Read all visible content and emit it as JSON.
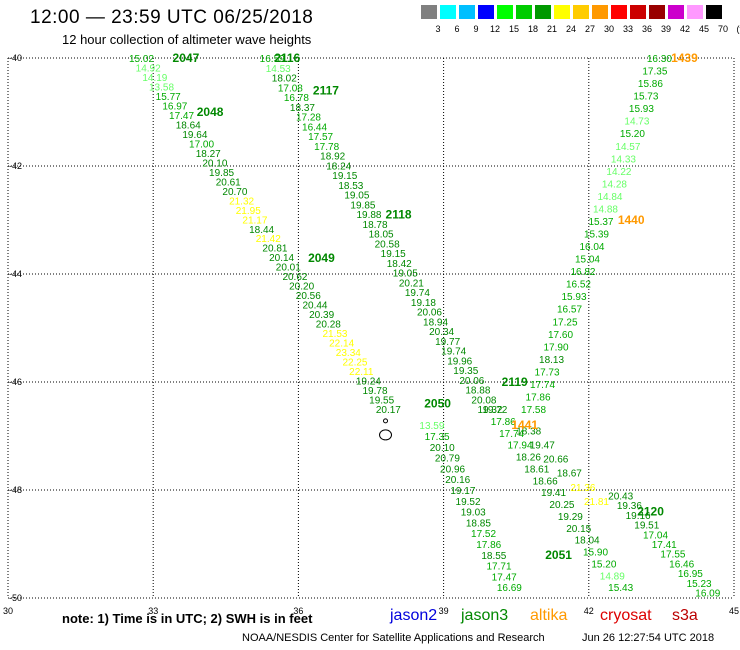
{
  "header": {
    "title": "12:00 — 23:59 UTC 06/25/2018",
    "subtitle": "12 hour collection of altimeter wave heights"
  },
  "color_scale": {
    "labels": [
      "3",
      "6",
      "9",
      "12",
      "15",
      "18",
      "21",
      "24",
      "27",
      "30",
      "33",
      "36",
      "39",
      "42",
      "45",
      "70",
      "(ft)"
    ],
    "colors": [
      "#808080",
      "#00ffff",
      "#00bfff",
      "#0000ff",
      "#00ff00",
      "#00cc00",
      "#009900",
      "#ffff00",
      "#ffcc00",
      "#ff9900",
      "#ff0000",
      "#cc0000",
      "#990000",
      "#cc00cc",
      "#ff99ff",
      "#000000"
    ]
  },
  "satellites": [
    {
      "name": "jason2",
      "color": "#0000dd"
    },
    {
      "name": "jason3",
      "color": "#008800"
    },
    {
      "name": "altika",
      "color": "#ff9900"
    },
    {
      "name": "cryosat",
      "color": "#dd0000"
    },
    {
      "name": "s3a",
      "color": "#bb0000"
    }
  ],
  "footer": {
    "note": "note:  1) Time is in UTC;  2) SWH is in feet",
    "credit": "NOAA/NESDIS Center for Satellite Applications and Research",
    "timestamp": "Jun 26 12:27:54 UTC 2018"
  },
  "chart_data": {
    "type": "scatter",
    "x_ticks": [
      "30",
      "33",
      "36",
      "39",
      "42",
      "45"
    ],
    "y_ticks": [
      "-40",
      "-42",
      "-44",
      "-46",
      "-48",
      "-50"
    ],
    "xlim": [
      30,
      45
    ],
    "ylim": [
      -50,
      -40
    ],
    "grid": true,
    "tracks": [
      {
        "id": "2047",
        "satellite": "jason3",
        "label": "2047",
        "label_pos": [
          33.4,
          -40.0
        ],
        "start": [
          32.5,
          -40.0
        ],
        "end": [
          37.6,
          -46.5
        ],
        "values": [
          "15.02",
          "14.92",
          "14.19",
          "13.58",
          "15.77",
          "16.97",
          "17.47",
          "18.64",
          "19.64",
          "17.00",
          "18.27",
          "20.10",
          "19.85",
          "20.61",
          "20.70",
          "21.32",
          "21.95",
          "21.17",
          "18.44",
          "21.42",
          "20.81",
          "20.14",
          "20.01",
          "20.62",
          "20.20",
          "20.56",
          "20.44",
          "20.39",
          "20.28",
          "21.53",
          "22.14",
          "23.34",
          "22.25",
          "22.11",
          "19.24",
          "19.78",
          "19.55",
          "20.17"
        ]
      },
      {
        "id": "2048",
        "satellite": "jason3",
        "label": "2048",
        "label_pos": [
          33.9,
          -41.0
        ],
        "values": []
      },
      {
        "id": "2049",
        "satellite": "jason3",
        "label": "2049",
        "label_pos": [
          36.2,
          -43.7
        ],
        "values": []
      },
      {
        "id": "2050",
        "satellite": "jason3",
        "label": "2050",
        "label_pos": [
          38.6,
          -46.4
        ],
        "start": [
          38.5,
          -46.8
        ],
        "end": [
          40.1,
          -49.8
        ],
        "values": [
          "13.59",
          "17.35",
          "20.10",
          "20.79",
          "20.96",
          "20.16",
          "19.17",
          "19.52",
          "19.03",
          "18.85",
          "17.52",
          "17.86",
          "18.55",
          "17.71",
          "17.47",
          "16.69"
        ]
      },
      {
        "id": "2116",
        "satellite": "jason3",
        "label": "2116",
        "label_pos": [
          35.5,
          -40.0
        ],
        "start": [
          35.2,
          -40.0
        ],
        "end": [
          39.7,
          -46.5
        ],
        "values": [
          "16.59",
          "14.53",
          "18.02",
          "17.08",
          "16.78",
          "18.37",
          "17.28",
          "16.44",
          "17.57",
          "17.78",
          "18.92",
          "18.24",
          "19.15",
          "18.53",
          "19.05",
          "19.85",
          "19.88",
          "18.78",
          "18.05",
          "20.58",
          "19.15",
          "18.42",
          "19.05",
          "20.21",
          "19.74",
          "19.18",
          "20.06",
          "18.94",
          "20.34",
          "19.77",
          "19.74",
          "19.96",
          "19.35",
          "20.06",
          "18.88",
          "20.08",
          "19.32"
        ]
      },
      {
        "id": "2117",
        "satellite": "jason3",
        "label": "2117",
        "label_pos": [
          36.3,
          -40.6
        ],
        "values": []
      },
      {
        "id": "2118",
        "satellite": "jason3",
        "label": "2118",
        "label_pos": [
          37.8,
          -42.9
        ],
        "values": []
      },
      {
        "id": "2119",
        "satellite": "jason3",
        "label": "2119",
        "label_pos": [
          40.2,
          -46.0
        ],
        "start": [
          39.8,
          -46.5
        ],
        "end": [
          42.4,
          -49.8
        ],
        "values": [
          "19.72",
          "17.86",
          "17.74",
          "17.94",
          "18.26",
          "18.61",
          "18.66",
          "19.41",
          "20.25",
          "19.29",
          "20.15",
          "18.04",
          "15.90",
          "15.20",
          "14.89",
          "15.43"
        ]
      },
      {
        "id": "2051",
        "satellite": "jason3",
        "label": "2051",
        "label_pos": [
          41.1,
          -49.2
        ],
        "values": []
      },
      {
        "id": "2120",
        "satellite": "jason3",
        "label": "2120",
        "label_pos": [
          43.0,
          -48.4
        ],
        "start": [
          42.4,
          -48.1
        ],
        "end": [
          44.2,
          -49.9
        ],
        "values": [
          "20.43",
          "19.36",
          "19.16",
          "19.51",
          "17.04",
          "17.41",
          "17.55",
          "16.46",
          "16.95",
          "15.23",
          "16.09"
        ]
      },
      {
        "id": "1439",
        "satellite": "altika",
        "label": "1439",
        "label_pos": [
          43.7,
          -40.0
        ],
        "start": [
          43.2,
          -40.0
        ],
        "end": [
          40.6,
          -46.5
        ],
        "values": [
          "16.30",
          "17.35",
          "15.86",
          "15.73",
          "15.93",
          "14.73",
          "15.20",
          "14.57",
          "14.33",
          "14.22",
          "14.28",
          "14.84",
          "14.88",
          "15.37",
          "15.39",
          "16.04",
          "15.04",
          "16.82",
          "16.52",
          "15.93",
          "16.57",
          "17.25",
          "17.60",
          "17.90",
          "18.13",
          "17.73",
          "17.74",
          "17.86",
          "17.58"
        ]
      },
      {
        "id": "1440",
        "satellite": "altika",
        "label": "1440",
        "label_pos": [
          42.6,
          -43.0
        ],
        "values": []
      },
      {
        "id": "1441",
        "satellite": "altika",
        "label": "1441",
        "label_pos": [
          40.4,
          -46.8
        ],
        "start": [
          40.5,
          -46.9
        ],
        "end": [
          41.9,
          -48.2
        ],
        "values": [
          "18.38",
          "19.47",
          "20.66",
          "18.67",
          "21.36",
          "21.81"
        ]
      }
    ]
  }
}
